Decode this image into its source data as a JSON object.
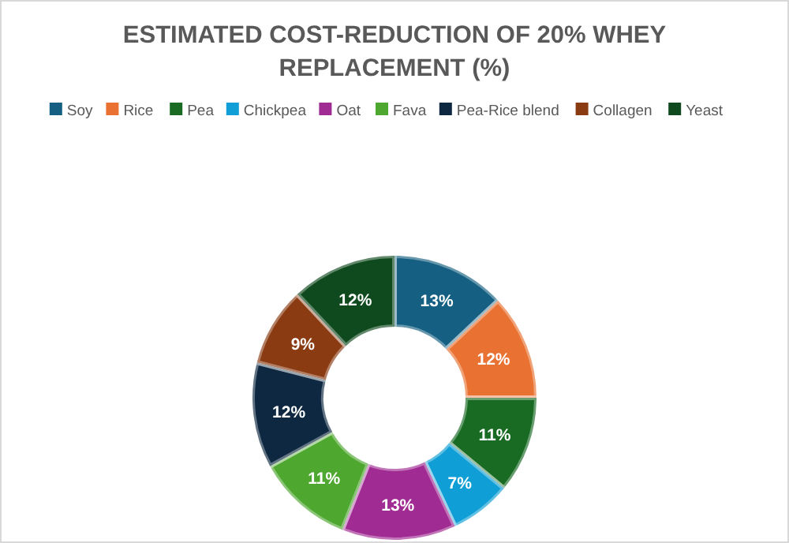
{
  "chart_data": {
    "type": "donut",
    "title": "ESTIMATED COST-REDUCTION OF 20% WHEY REPLACEMENT (%)",
    "categories": [
      "Soy",
      "Rice",
      "Pea",
      "Chickpea",
      "Oat",
      "Fava",
      "Pea-Rice blend",
      "Collagen",
      "Yeast"
    ],
    "values": [
      13,
      12,
      11,
      7,
      13,
      11,
      12,
      9,
      12
    ],
    "colors": [
      "#156082",
      "#e97132",
      "#196b24",
      "#0f9ed5",
      "#a02b93",
      "#4ea72e",
      "#0e2841",
      "#8a3b12",
      "#0f4a1e"
    ],
    "value_labels": [
      "13%",
      "12%",
      "11%",
      "7%",
      "13%",
      "11%",
      "12%",
      "9%",
      "12%"
    ],
    "legend": "top"
  }
}
